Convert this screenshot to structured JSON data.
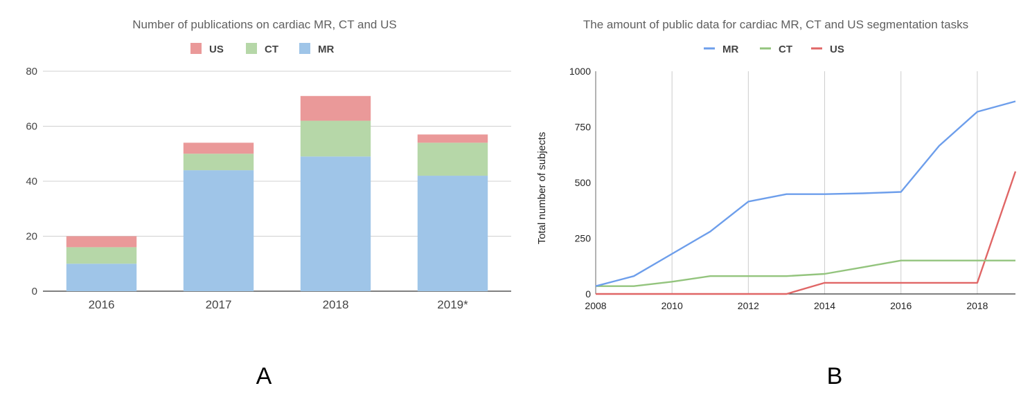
{
  "chart_data": [
    {
      "type": "bar",
      "stacked": true,
      "title": "Number of publications on cardiac MR, CT and US",
      "categories": [
        "2016",
        "2017",
        "2018",
        "2019*"
      ],
      "series": [
        {
          "name": "MR",
          "color": "#9fc5e8",
          "values": [
            10,
            44,
            49,
            42
          ]
        },
        {
          "name": "CT",
          "color": "#b6d7a8",
          "values": [
            6,
            6,
            13,
            12
          ]
        },
        {
          "name": "US",
          "color": "#ea9999",
          "values": [
            4,
            4,
            9,
            3
          ]
        }
      ],
      "legend_order": [
        "US",
        "CT",
        "MR"
      ],
      "legend_position": "top",
      "yticks": [
        "0",
        "20",
        "40",
        "60",
        "80"
      ],
      "ylim": [
        0,
        80
      ],
      "grid": true,
      "panel_label": "A"
    },
    {
      "type": "line",
      "title": "The amount of public data for cardiac MR, CT and US segmentation tasks",
      "ylabel": "Total number of  subjects",
      "x": [
        2008,
        2009,
        2010,
        2011,
        2012,
        2013,
        2014,
        2015,
        2016,
        2017,
        2018,
        2019
      ],
      "series": [
        {
          "name": "MR",
          "color": "#6d9eeb",
          "values": [
            35,
            80,
            180,
            280,
            415,
            448,
            448,
            452,
            458,
            665,
            818,
            865
          ]
        },
        {
          "name": "CT",
          "color": "#93c47d",
          "values": [
            35,
            35,
            55,
            80,
            80,
            80,
            90,
            120,
            150,
            150,
            150,
            150
          ]
        },
        {
          "name": "US",
          "color": "#e06666",
          "values": [
            0,
            0,
            0,
            0,
            0,
            0,
            50,
            50,
            50,
            50,
            50,
            550
          ]
        }
      ],
      "legend_order": [
        "MR",
        "CT",
        "US"
      ],
      "legend_position": "top",
      "xticks": [
        "2008",
        "2010",
        "2012",
        "2014",
        "2016",
        "2018"
      ],
      "yticks": [
        "0",
        "250",
        "500",
        "750",
        "1000"
      ],
      "xlim": [
        2008,
        2019
      ],
      "ylim": [
        0,
        1000
      ],
      "grid": "vertical",
      "panel_label": "B"
    }
  ]
}
